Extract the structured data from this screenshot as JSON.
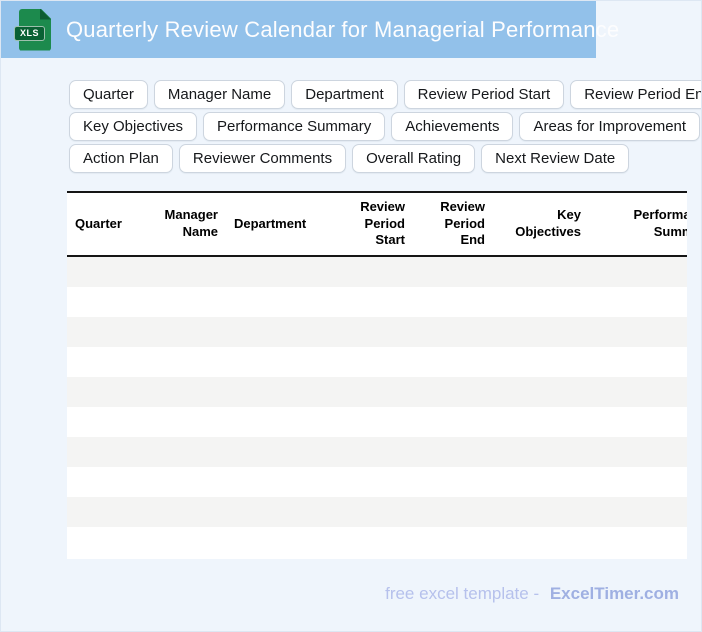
{
  "header": {
    "title": "Quarterly Review Calendar for Managerial Performance",
    "icon_label": "XLS"
  },
  "colors": {
    "topbar_blue": "#92c1ea",
    "page_background": "#eff5fc",
    "icon_green": "#1c8a4d",
    "icon_dark_green": "#0a6134",
    "table_rule_black": "#151515",
    "row_stripe_gray": "#f4f4f3",
    "footer_light": "#b6c1ec",
    "footer_brand": "#9fb0e2"
  },
  "chip_rows": [
    [
      "Quarter",
      "Manager Name",
      "Department",
      "Review Period Start",
      "Review Period End"
    ],
    [
      "Key Objectives",
      "Performance Summary",
      "Achievements",
      "Areas for Improvement"
    ],
    [
      "Action Plan",
      "Reviewer Comments",
      "Overall Rating",
      "Next Review Date"
    ]
  ],
  "table": {
    "columns": [
      "Quarter",
      "Manager\nName",
      "Department",
      "Review\nPeriod\nStart",
      "Review\nPeriod End",
      "Key\nObjectives",
      "Performance\nSummary"
    ],
    "row_count": 10
  },
  "footer": {
    "text": "free excel template -",
    "brand": "ExcelTimer.com"
  }
}
